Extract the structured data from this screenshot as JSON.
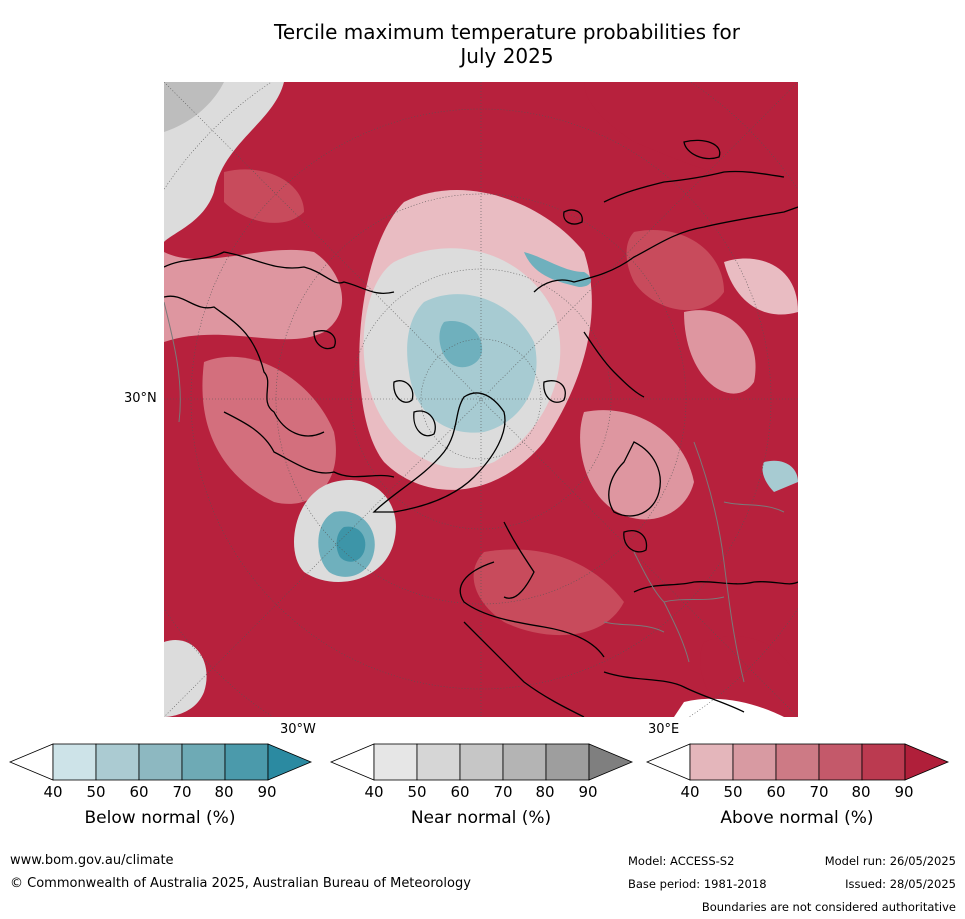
{
  "title_line1": "Tercile maximum temperature probabilities for",
  "title_line2": "July 2025",
  "map": {
    "lat_label": "30°N",
    "lon_label_left": "30°W",
    "lon_label_right": "30°E",
    "colors": {
      "above_90": "#b7213d",
      "above_80": "#c84b5c",
      "above_70": "#d36f7d",
      "above_60": "#de96a0",
      "above_50": "#e9bcc2",
      "near_50": "#dcdcdc",
      "near_70": "#bdbdbd",
      "below_50": "#a7cbd2",
      "below_70": "#6fb0bd",
      "below_80": "#3d95a8",
      "white": "#ffffff",
      "coast": "#000000",
      "border": "#7a7a7a"
    }
  },
  "colorbars": {
    "below": {
      "label": "Below normal (%)",
      "ticks": [
        "40",
        "50",
        "60",
        "70",
        "80",
        "90"
      ],
      "colors": [
        "#ffffff",
        "#cde3e8",
        "#abcbd2",
        "#8db8c1",
        "#6eaab5",
        "#4b9aab",
        "#2b8aa1"
      ]
    },
    "near": {
      "label": "Near normal (%)",
      "ticks": [
        "40",
        "50",
        "60",
        "70",
        "80",
        "90"
      ],
      "colors": [
        "#ffffff",
        "#e6e6e6",
        "#d6d6d6",
        "#c6c6c6",
        "#b4b4b4",
        "#9e9e9e",
        "#7f7f7f"
      ]
    },
    "above": {
      "label": "Above normal (%)",
      "ticks": [
        "40",
        "50",
        "60",
        "70",
        "80",
        "90"
      ],
      "colors": [
        "#ffffff",
        "#e4b6bb",
        "#d89aa2",
        "#cd7a85",
        "#c4596a",
        "#bb3a50",
        "#b01f3a"
      ]
    }
  },
  "footer": {
    "url": "www.bom.gov.au/climate",
    "copyright": "© Commonwealth of Australia 2025, Australian Bureau of Meteorology",
    "model": "Model: ACCESS-S2",
    "base_period": "Base period: 1981-2018",
    "model_run": "Model run: 26/05/2025",
    "issued": "Issued: 28/05/2025",
    "disclaimer": "Boundaries are not considered authoritative"
  }
}
